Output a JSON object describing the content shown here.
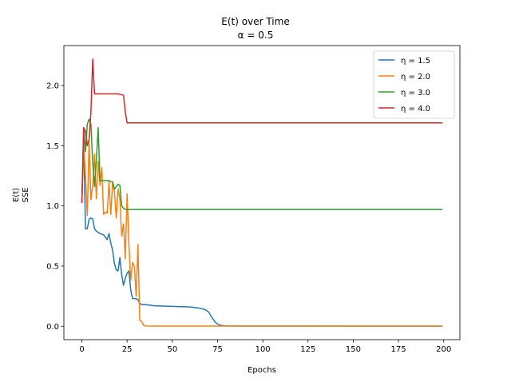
{
  "chart_data": {
    "type": "line",
    "title": "E(t) over Time",
    "subtitle": "α = 0.5",
    "xlabel": "Epochs",
    "ylabel_line1": "E(t)",
    "ylabel_line2": "SSE",
    "xlim": [
      -9.95,
      208.95
    ],
    "ylim": [
      -0.111,
      2.332
    ],
    "xticks": [
      0,
      25,
      50,
      75,
      100,
      125,
      150,
      175,
      200
    ],
    "xtick_labels": [
      "0",
      "25",
      "50",
      "75",
      "100",
      "125",
      "150",
      "175",
      "200"
    ],
    "yticks": [
      0.0,
      0.5,
      1.0,
      1.5,
      2.0
    ],
    "ytick_labels": [
      "0.0",
      "0.5",
      "1.0",
      "1.5",
      "2.0"
    ],
    "grid": false,
    "legend_position": "top-right",
    "series": [
      {
        "name": "η = 1.5",
        "color": "#1f77b4",
        "x": [
          0,
          1,
          2,
          3,
          4,
          5,
          6,
          7,
          8,
          10,
          12,
          14,
          15,
          16,
          17,
          18,
          19,
          20,
          21,
          22,
          23,
          24,
          25,
          26,
          27,
          28,
          29,
          30,
          31,
          32,
          33,
          35,
          40,
          50,
          60,
          65,
          68,
          70,
          72,
          74,
          76,
          78,
          80,
          90,
          199
        ],
        "y": [
          1.03,
          1.55,
          0.81,
          0.81,
          0.89,
          0.9,
          0.89,
          0.81,
          0.79,
          0.77,
          0.76,
          0.72,
          0.77,
          0.69,
          0.63,
          0.52,
          0.47,
          0.46,
          0.57,
          0.43,
          0.34,
          0.4,
          0.44,
          0.46,
          0.3,
          0.23,
          0.23,
          0.23,
          0.22,
          0.19,
          0.18,
          0.18,
          0.17,
          0.165,
          0.16,
          0.15,
          0.14,
          0.12,
          0.07,
          0.03,
          0.01,
          0.005,
          0.003,
          0.002,
          0.001
        ]
      },
      {
        "name": "η = 2.0",
        "color": "#ff7f0e",
        "x": [
          0,
          1,
          2,
          3,
          4,
          5,
          6,
          7,
          8,
          9,
          10,
          11,
          12,
          13,
          14,
          15,
          16,
          17,
          18,
          19,
          20,
          21,
          22,
          23,
          24,
          25,
          26,
          27,
          28,
          29,
          30,
          31,
          32,
          33,
          34,
          35,
          40,
          199
        ],
        "y": [
          1.03,
          1.52,
          1.25,
          0.92,
          1.54,
          1.05,
          1.17,
          1.43,
          1.06,
          1.37,
          1.17,
          1.32,
          0.93,
          0.95,
          0.94,
          1.2,
          0.93,
          1.2,
          1.12,
          0.9,
          1.14,
          1.06,
          0.75,
          0.85,
          0.56,
          1.1,
          0.68,
          0.38,
          0.53,
          0.5,
          0.25,
          0.68,
          0.05,
          0.04,
          0.01,
          0.003,
          0.002,
          0.002
        ]
      },
      {
        "name": "η = 3.0",
        "color": "#2ca02c",
        "x": [
          0,
          1,
          2,
          3,
          4,
          5,
          6,
          7,
          8,
          9,
          10,
          11,
          15,
          16,
          17,
          18,
          19,
          20,
          21,
          22,
          23,
          24,
          25,
          199
        ],
        "y": [
          1.03,
          1.65,
          1.45,
          1.68,
          1.72,
          1.68,
          1.36,
          1.16,
          1.38,
          1.65,
          1.21,
          1.21,
          1.21,
          1.2,
          1.2,
          1.14,
          1.16,
          1.18,
          1.17,
          1.0,
          0.98,
          0.97,
          0.97,
          0.97
        ]
      },
      {
        "name": "η = 4.0",
        "color": "#d62728",
        "x": [
          0,
          1,
          2,
          3,
          4,
          5,
          6,
          7,
          8,
          10,
          15,
          20,
          23,
          24,
          25,
          199
        ],
        "y": [
          1.03,
          1.65,
          1.62,
          1.5,
          1.55,
          1.78,
          2.22,
          1.93,
          1.93,
          1.93,
          1.93,
          1.93,
          1.92,
          1.78,
          1.69,
          1.69
        ]
      }
    ]
  }
}
